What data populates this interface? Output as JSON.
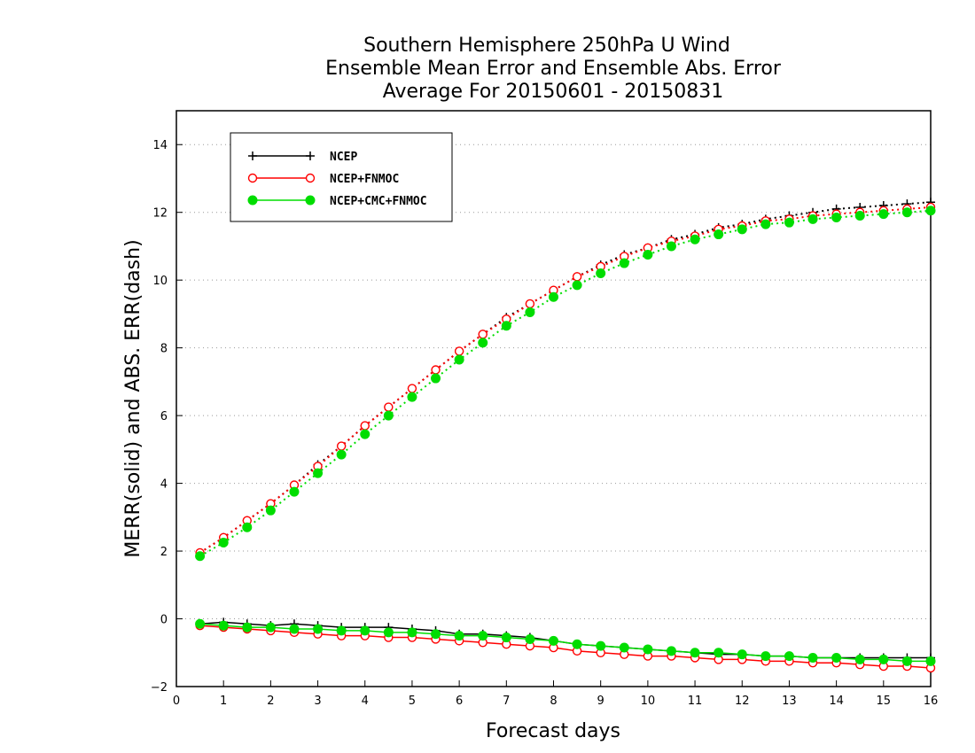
{
  "chart_data": {
    "type": "line",
    "title": [
      "Southern Hemisphere 250hPa U Wind",
      "Ensemble Mean Error and Ensemble Abs. Error",
      "Average For 20150601 - 20150831"
    ],
    "xlabel": "Forecast days",
    "ylabel": "MERR(solid) and ABS. ERR(dash)",
    "xlim": [
      0,
      16
    ],
    "ylim": [
      -2,
      15
    ],
    "xticks": [
      "0",
      "1",
      "2",
      "3",
      "4",
      "5",
      "6",
      "7",
      "8",
      "9",
      "10",
      "11",
      "12",
      "13",
      "14",
      "15",
      "16"
    ],
    "yticks": [
      "-2",
      "0",
      "2",
      "4",
      "6",
      "8",
      "10",
      "12",
      "14"
    ],
    "grid": "horizontal-dotted",
    "legend": {
      "placement": "top-left",
      "entries": [
        "NCEP",
        "NCEP+FNMOC",
        "NCEP+CMC+FNMOC"
      ]
    },
    "x": [
      0.5,
      1,
      1.5,
      2,
      2.5,
      3,
      3.5,
      4,
      4.5,
      5,
      5.5,
      6,
      6.5,
      7,
      7.5,
      8,
      8.5,
      9,
      9.5,
      10,
      10.5,
      11,
      11.5,
      12,
      12.5,
      13,
      13.5,
      14,
      14.5,
      15,
      15.5,
      16
    ],
    "series": [
      {
        "name": "NCEP",
        "color": "#000000",
        "marker": "plus",
        "merr": [
          -0.15,
          -0.1,
          -0.15,
          -0.2,
          -0.15,
          -0.2,
          -0.25,
          -0.25,
          -0.25,
          -0.3,
          -0.35,
          -0.45,
          -0.45,
          -0.5,
          -0.55,
          -0.65,
          -0.75,
          -0.8,
          -0.85,
          -0.9,
          -0.95,
          -1.0,
          -1.05,
          -1.05,
          -1.1,
          -1.1,
          -1.15,
          -1.15,
          -1.15,
          -1.15,
          -1.15,
          -1.15
        ],
        "abs_err": [
          1.95,
          2.4,
          2.9,
          3.4,
          3.95,
          4.55,
          5.1,
          5.7,
          6.25,
          6.8,
          7.35,
          7.9,
          8.4,
          8.9,
          9.3,
          9.7,
          10.1,
          10.45,
          10.75,
          10.95,
          11.2,
          11.35,
          11.55,
          11.65,
          11.8,
          11.9,
          12.0,
          12.1,
          12.15,
          12.2,
          12.25,
          12.3
        ]
      },
      {
        "name": "NCEP+FNMOC",
        "color": "#ff0000",
        "marker": "open-circle",
        "merr": [
          -0.2,
          -0.25,
          -0.3,
          -0.35,
          -0.4,
          -0.45,
          -0.5,
          -0.5,
          -0.55,
          -0.55,
          -0.6,
          -0.65,
          -0.7,
          -0.75,
          -0.8,
          -0.85,
          -0.95,
          -1.0,
          -1.05,
          -1.1,
          -1.1,
          -1.15,
          -1.2,
          -1.2,
          -1.25,
          -1.25,
          -1.3,
          -1.3,
          -1.35,
          -1.4,
          -1.4,
          -1.45
        ],
        "abs_err": [
          1.95,
          2.4,
          2.9,
          3.4,
          3.95,
          4.5,
          5.1,
          5.7,
          6.25,
          6.8,
          7.35,
          7.9,
          8.4,
          8.85,
          9.3,
          9.7,
          10.1,
          10.4,
          10.7,
          10.95,
          11.15,
          11.3,
          11.5,
          11.6,
          11.75,
          11.8,
          11.9,
          11.95,
          12.0,
          12.05,
          12.1,
          12.15
        ]
      },
      {
        "name": "NCEP+CMC+FNMOC",
        "color": "#00dd00",
        "marker": "filled-circle",
        "merr": [
          -0.15,
          -0.2,
          -0.25,
          -0.25,
          -0.3,
          -0.3,
          -0.35,
          -0.35,
          -0.4,
          -0.4,
          -0.45,
          -0.5,
          -0.5,
          -0.55,
          -0.6,
          -0.65,
          -0.75,
          -0.8,
          -0.85,
          -0.9,
          -0.95,
          -1.0,
          -1.0,
          -1.05,
          -1.1,
          -1.1,
          -1.15,
          -1.15,
          -1.2,
          -1.2,
          -1.25,
          -1.25
        ],
        "abs_err": [
          1.85,
          2.25,
          2.7,
          3.2,
          3.75,
          4.3,
          4.85,
          5.45,
          6.0,
          6.55,
          7.1,
          7.65,
          8.15,
          8.65,
          9.05,
          9.5,
          9.85,
          10.2,
          10.5,
          10.75,
          11.0,
          11.2,
          11.35,
          11.5,
          11.65,
          11.7,
          11.8,
          11.85,
          11.9,
          11.95,
          12.0,
          12.05
        ]
      }
    ]
  }
}
